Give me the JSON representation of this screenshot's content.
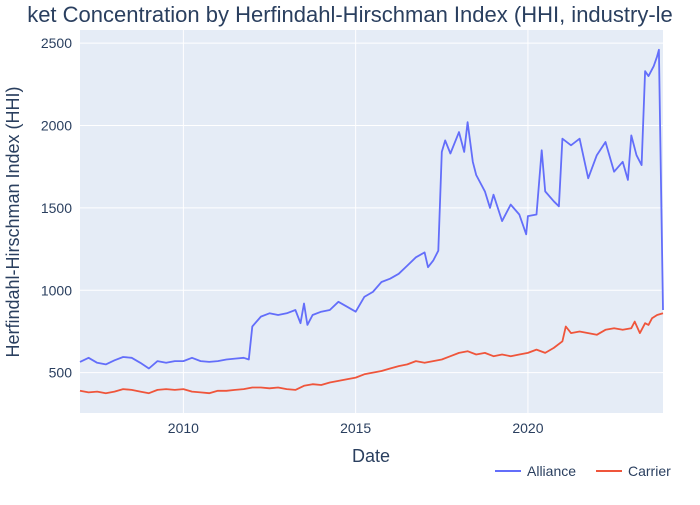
{
  "chart_data": {
    "type": "line",
    "title": "ket Concentration by Herfindahl-Hirschman Index (HHI, industry-le",
    "xlabel": "Date",
    "ylabel": "Herfindahl-Hirschman Index (HHI)",
    "xlim": [
      2007.0,
      2023.92
    ],
    "ylim": [
      255,
      2580
    ],
    "xticks": [
      2010,
      2015,
      2020
    ],
    "yticks": [
      500,
      1000,
      1500,
      2000,
      2500
    ],
    "grid": true,
    "legend_position": "bottom-right",
    "background_color": "#e5ecf6",
    "series": [
      {
        "name": "Alliance",
        "color": "#636efa",
        "points": [
          [
            2007.0,
            565
          ],
          [
            2007.25,
            590
          ],
          [
            2007.5,
            560
          ],
          [
            2007.75,
            550
          ],
          [
            2008.0,
            575
          ],
          [
            2008.25,
            595
          ],
          [
            2008.5,
            590
          ],
          [
            2008.75,
            560
          ],
          [
            2009.0,
            525
          ],
          [
            2009.25,
            570
          ],
          [
            2009.5,
            560
          ],
          [
            2009.75,
            570
          ],
          [
            2010.0,
            570
          ],
          [
            2010.25,
            590
          ],
          [
            2010.5,
            570
          ],
          [
            2010.75,
            565
          ],
          [
            2011.0,
            570
          ],
          [
            2011.25,
            580
          ],
          [
            2011.5,
            585
          ],
          [
            2011.75,
            590
          ],
          [
            2011.9,
            580
          ],
          [
            2012.0,
            780
          ],
          [
            2012.25,
            840
          ],
          [
            2012.5,
            860
          ],
          [
            2012.75,
            850
          ],
          [
            2013.0,
            860
          ],
          [
            2013.25,
            880
          ],
          [
            2013.4,
            800
          ],
          [
            2013.5,
            920
          ],
          [
            2013.6,
            790
          ],
          [
            2013.75,
            850
          ],
          [
            2014.0,
            870
          ],
          [
            2014.25,
            880
          ],
          [
            2014.5,
            930
          ],
          [
            2014.75,
            900
          ],
          [
            2015.0,
            870
          ],
          [
            2015.25,
            960
          ],
          [
            2015.5,
            990
          ],
          [
            2015.75,
            1050
          ],
          [
            2016.0,
            1070
          ],
          [
            2016.25,
            1100
          ],
          [
            2016.5,
            1150
          ],
          [
            2016.75,
            1200
          ],
          [
            2017.0,
            1230
          ],
          [
            2017.1,
            1140
          ],
          [
            2017.25,
            1180
          ],
          [
            2017.4,
            1240
          ],
          [
            2017.5,
            1840
          ],
          [
            2017.6,
            1910
          ],
          [
            2017.75,
            1830
          ],
          [
            2018.0,
            1960
          ],
          [
            2018.15,
            1840
          ],
          [
            2018.25,
            2020
          ],
          [
            2018.4,
            1780
          ],
          [
            2018.5,
            1700
          ],
          [
            2018.75,
            1600
          ],
          [
            2018.9,
            1500
          ],
          [
            2019.0,
            1580
          ],
          [
            2019.25,
            1420
          ],
          [
            2019.5,
            1520
          ],
          [
            2019.75,
            1460
          ],
          [
            2019.95,
            1340
          ],
          [
            2020.0,
            1450
          ],
          [
            2020.25,
            1460
          ],
          [
            2020.4,
            1850
          ],
          [
            2020.5,
            1600
          ],
          [
            2020.75,
            1540
          ],
          [
            2020.9,
            1510
          ],
          [
            2021.0,
            1920
          ],
          [
            2021.25,
            1880
          ],
          [
            2021.5,
            1920
          ],
          [
            2021.75,
            1680
          ],
          [
            2022.0,
            1820
          ],
          [
            2022.25,
            1900
          ],
          [
            2022.5,
            1720
          ],
          [
            2022.75,
            1780
          ],
          [
            2022.9,
            1670
          ],
          [
            2023.0,
            1940
          ],
          [
            2023.15,
            1820
          ],
          [
            2023.3,
            1760
          ],
          [
            2023.4,
            2330
          ],
          [
            2023.5,
            2300
          ],
          [
            2023.65,
            2360
          ],
          [
            2023.75,
            2420
          ],
          [
            2023.8,
            2460
          ],
          [
            2023.92,
            880
          ]
        ]
      },
      {
        "name": "Carrier",
        "color": "#ef553b",
        "points": [
          [
            2007.0,
            390
          ],
          [
            2007.25,
            380
          ],
          [
            2007.5,
            385
          ],
          [
            2007.75,
            375
          ],
          [
            2008.0,
            385
          ],
          [
            2008.25,
            400
          ],
          [
            2008.5,
            395
          ],
          [
            2008.75,
            385
          ],
          [
            2009.0,
            375
          ],
          [
            2009.25,
            395
          ],
          [
            2009.5,
            400
          ],
          [
            2009.75,
            395
          ],
          [
            2010.0,
            400
          ],
          [
            2010.25,
            385
          ],
          [
            2010.5,
            380
          ],
          [
            2010.75,
            375
          ],
          [
            2011.0,
            390
          ],
          [
            2011.25,
            390
          ],
          [
            2011.5,
            395
          ],
          [
            2011.75,
            400
          ],
          [
            2012.0,
            410
          ],
          [
            2012.25,
            410
          ],
          [
            2012.5,
            405
          ],
          [
            2012.75,
            410
          ],
          [
            2013.0,
            400
          ],
          [
            2013.25,
            395
          ],
          [
            2013.5,
            420
          ],
          [
            2013.75,
            430
          ],
          [
            2014.0,
            425
          ],
          [
            2014.25,
            440
          ],
          [
            2014.5,
            450
          ],
          [
            2014.75,
            460
          ],
          [
            2015.0,
            470
          ],
          [
            2015.25,
            490
          ],
          [
            2015.5,
            500
          ],
          [
            2015.75,
            510
          ],
          [
            2016.0,
            525
          ],
          [
            2016.25,
            540
          ],
          [
            2016.5,
            550
          ],
          [
            2016.75,
            570
          ],
          [
            2017.0,
            560
          ],
          [
            2017.25,
            570
          ],
          [
            2017.5,
            580
          ],
          [
            2017.75,
            600
          ],
          [
            2018.0,
            620
          ],
          [
            2018.25,
            630
          ],
          [
            2018.5,
            610
          ],
          [
            2018.75,
            620
          ],
          [
            2019.0,
            600
          ],
          [
            2019.25,
            610
          ],
          [
            2019.5,
            600
          ],
          [
            2019.75,
            610
          ],
          [
            2020.0,
            620
          ],
          [
            2020.25,
            640
          ],
          [
            2020.5,
            620
          ],
          [
            2020.75,
            650
          ],
          [
            2021.0,
            690
          ],
          [
            2021.1,
            780
          ],
          [
            2021.25,
            740
          ],
          [
            2021.5,
            750
          ],
          [
            2021.75,
            740
          ],
          [
            2022.0,
            730
          ],
          [
            2022.25,
            760
          ],
          [
            2022.5,
            770
          ],
          [
            2022.75,
            760
          ],
          [
            2023.0,
            770
          ],
          [
            2023.1,
            810
          ],
          [
            2023.25,
            740
          ],
          [
            2023.4,
            800
          ],
          [
            2023.5,
            790
          ],
          [
            2023.6,
            830
          ],
          [
            2023.75,
            850
          ],
          [
            2023.92,
            860
          ]
        ]
      }
    ]
  }
}
